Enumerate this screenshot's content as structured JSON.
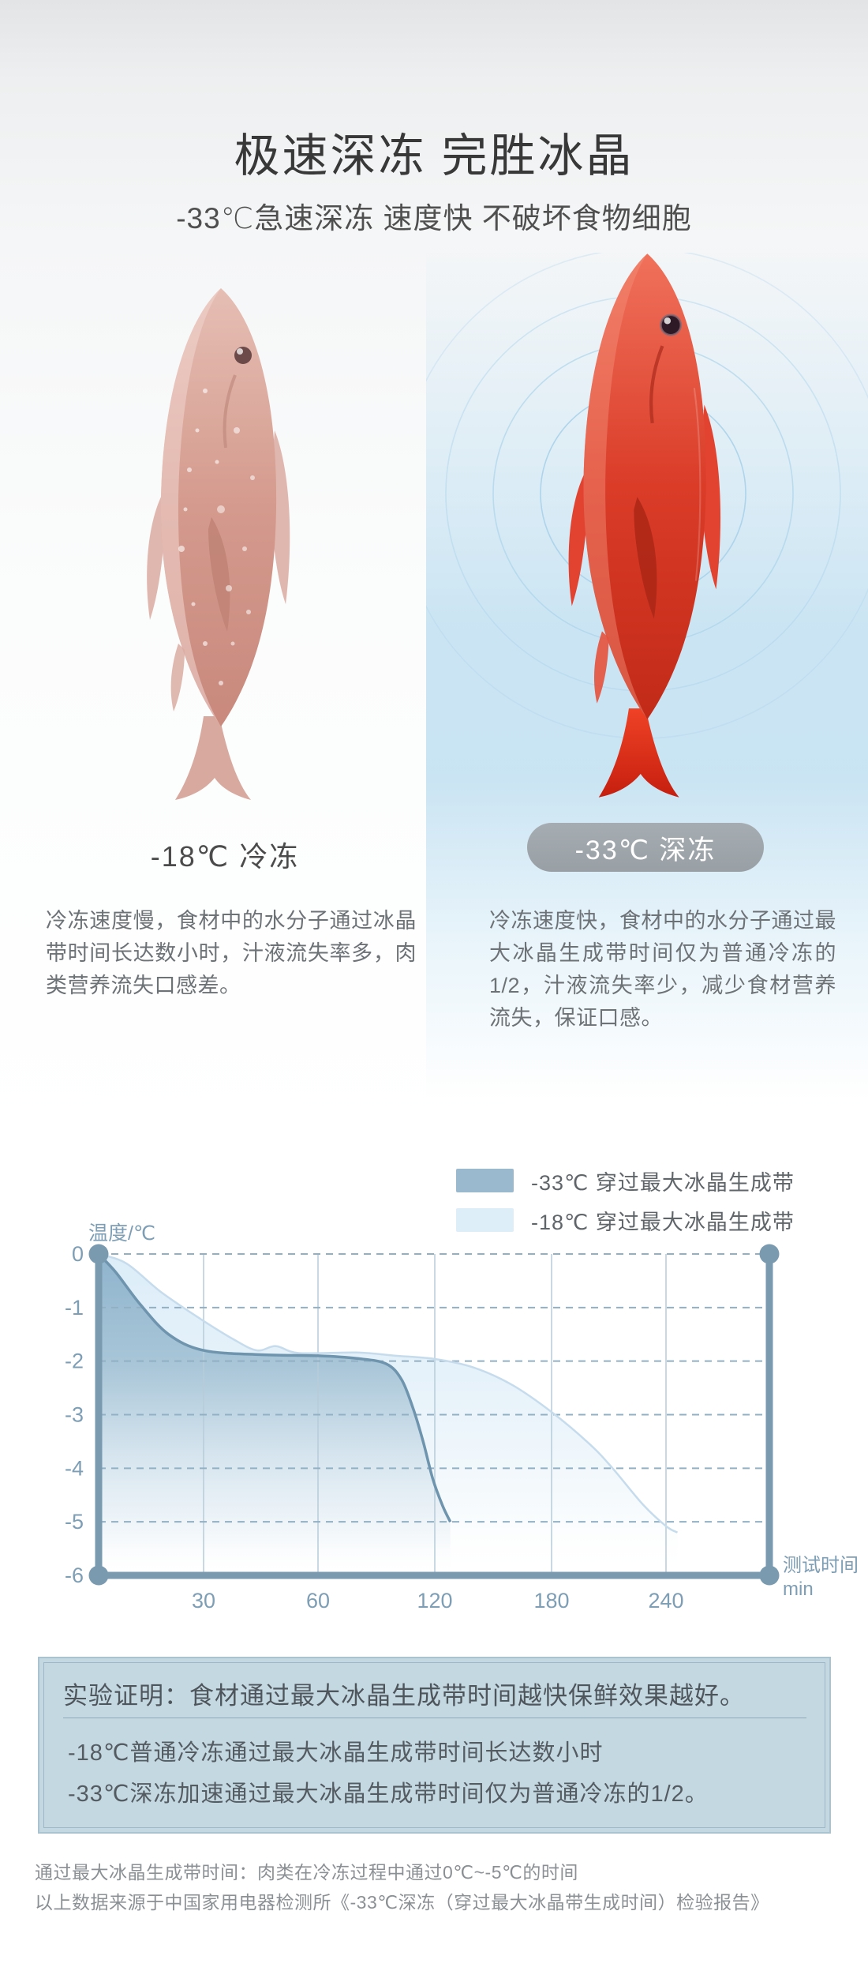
{
  "header": {
    "title": "极速深冻 完胜冰晶",
    "subtitle": "-33℃急速深冻 速度快 不破坏食物细胞"
  },
  "comparison": {
    "left": {
      "label": "-18℃ 冷冻",
      "description": "冷冻速度慢，食材中的水分子通过冰晶带时间长达数小时，汁液流失率多，肉类营养流失口感差。"
    },
    "right": {
      "label": "-33℃ 深冻",
      "description": "冷冻速度快，食材中的水分子通过最大冰晶生成带时间仅为普通冷冻的1/2，汁液流失率少，减少食材营养流失，保证口感。"
    }
  },
  "chart_data": {
    "type": "area",
    "title": "",
    "ylabel": "温度/℃",
    "xlabel_line1": "测试时间",
    "xlabel_line2": "min",
    "x_ticks": [
      30,
      60,
      120,
      180,
      240
    ],
    "y_ticks": [
      0,
      -1,
      -2,
      -3,
      -4,
      -5,
      -6
    ],
    "ylim": [
      -6,
      0
    ],
    "x_axis_nonlinear_equal_spacing": true,
    "grid": true,
    "legend_position": "top-right",
    "legend": [
      {
        "label": "-33℃ 穿过最大冰晶生成带",
        "color": "#9bb9ce"
      },
      {
        "label": "-18℃ 穿过最大冰晶生成带",
        "color": "#ddeef9"
      }
    ],
    "series": [
      {
        "name": "-33℃ 穿过最大冰晶生成带",
        "stroke": "#6f94ad",
        "fill": "url(#gDark)",
        "points_min_degC": [
          [
            0,
            0
          ],
          [
            5,
            -0.35
          ],
          [
            12,
            -0.95
          ],
          [
            20,
            -1.5
          ],
          [
            30,
            -1.8
          ],
          [
            45,
            -1.88
          ],
          [
            60,
            -1.9
          ],
          [
            80,
            -1.95
          ],
          [
            95,
            -2.05
          ],
          [
            103,
            -2.35
          ],
          [
            109,
            -2.9
          ],
          [
            114,
            -3.5
          ],
          [
            119,
            -4.2
          ],
          [
            124,
            -4.7
          ],
          [
            128,
            -5.0
          ]
        ]
      },
      {
        "name": "-18℃ 穿过最大冰晶生成带",
        "stroke": "#c6dcec",
        "fill": "url(#gLight)",
        "points_min_degC": [
          [
            0,
            0
          ],
          [
            8,
            -0.18
          ],
          [
            18,
            -0.72
          ],
          [
            30,
            -1.25
          ],
          [
            38,
            -1.6
          ],
          [
            44,
            -1.8
          ],
          [
            49,
            -1.72
          ],
          [
            55,
            -1.85
          ],
          [
            80,
            -1.84
          ],
          [
            100,
            -1.9
          ],
          [
            120,
            -1.96
          ],
          [
            140,
            -2.12
          ],
          [
            160,
            -2.45
          ],
          [
            180,
            -2.95
          ],
          [
            200,
            -3.55
          ],
          [
            212,
            -4.0
          ],
          [
            228,
            -4.68
          ],
          [
            240,
            -5.08
          ],
          [
            246,
            -5.2
          ]
        ]
      }
    ]
  },
  "proof_box": {
    "heading": "实验证明：食材通过最大冰晶生成带时间越快保鲜效果越好。",
    "lines": [
      "-18℃普通冷冻通过最大冰晶生成带时间长达数小时",
      "-33℃深冻加速通过最大冰晶生成带时间仅为普通冷冻的1/2。"
    ]
  },
  "footnotes": [
    "通过最大冰晶生成带时间：肉类在冷冻过程中通过0℃~-5℃的时间",
    "以上数据来源于中国家用电器检测所《-33℃深冻（穿过最大冰晶带生成时间）检验报告》"
  ]
}
